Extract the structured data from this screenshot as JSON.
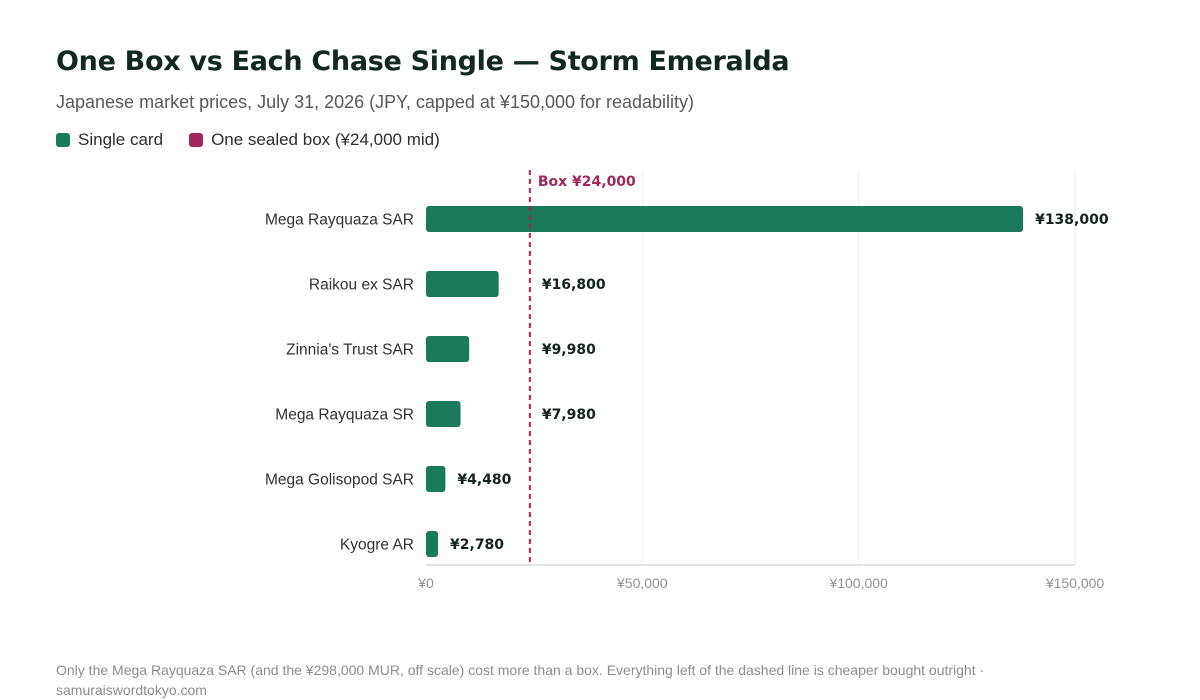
{
  "title": "One Box vs Each Chase Single — Storm Emeralda",
  "subtitle": "Japanese market prices, July 31, 2026 (JPY, capped at ¥150,000 for readability)",
  "legend": [
    {
      "label": "Single card",
      "color": "#1a7a5b"
    },
    {
      "label": "One sealed box (¥24,000 mid)",
      "color": "#a0285f"
    }
  ],
  "footnote": "Only the Mega Rayquaza SAR (and the ¥298,000 MUR, off scale) cost more than a box. Everything left of the dashed line is cheaper bought outright · samuraiswordtokyo.com",
  "chart_data": {
    "type": "bar",
    "orientation": "horizontal",
    "title": "One Box vs Each Chase Single — Storm Emeralda",
    "xlabel": "",
    "ylabel": "",
    "xlim": [
      0,
      150000
    ],
    "ticks": [
      0,
      50000,
      100000,
      150000
    ],
    "tick_labels": [
      "¥0",
      "¥50,000",
      "¥100,000",
      "¥150,000"
    ],
    "grid": true,
    "legend_position": "top-left",
    "categories": [
      "Mega Rayquaza SAR",
      "Raikou ex SAR",
      "Zinnia's Trust SAR",
      "Mega Rayquaza SR",
      "Mega Golisopod SAR",
      "Kyogre AR"
    ],
    "values": [
      138000,
      16800,
      9980,
      7980,
      4480,
      2780
    ],
    "value_labels": [
      "¥138,000",
      "¥16,800",
      "¥9,980",
      "¥7,980",
      "¥4,480",
      "¥2,780"
    ],
    "bar_color": "#1a7a5b",
    "reference_line": {
      "value": 24000,
      "label": "Box ¥24,000",
      "color": "#a0285f",
      "style": "dashed"
    }
  }
}
